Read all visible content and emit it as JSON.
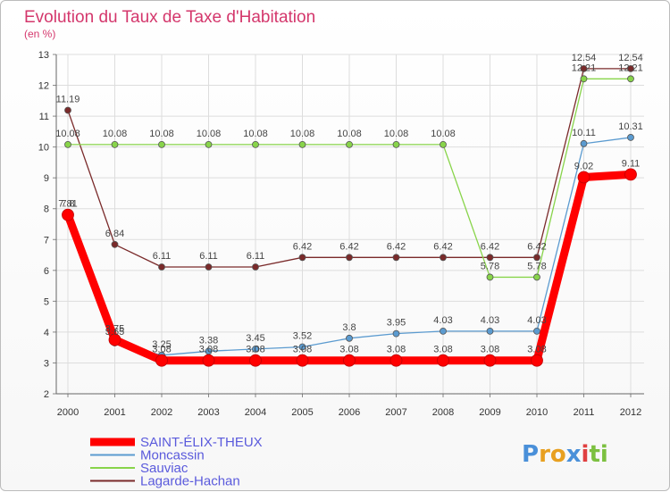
{
  "chart_data": {
    "type": "line",
    "title": "Evolution du Taux de Taxe d'Habitation",
    "subtitle": "(en %)",
    "xlabel": "",
    "ylabel": "",
    "ylim": [
      2,
      13
    ],
    "yticks": [
      "2",
      "3",
      "4",
      "5",
      "6",
      "7",
      "8",
      "9",
      "10",
      "11",
      "12",
      "13"
    ],
    "categories": [
      "2000",
      "2001",
      "2002",
      "2003",
      "2004",
      "2005",
      "2006",
      "2007",
      "2008",
      "2009",
      "2010",
      "2011",
      "2012"
    ],
    "series": [
      {
        "name": "Lagarde-Hachan",
        "color": "#7a2a2a",
        "values": [
          11.19,
          6.84,
          6.11,
          6.11,
          6.11,
          6.42,
          6.42,
          6.42,
          6.42,
          6.42,
          6.42,
          12.54,
          12.54
        ],
        "labels": [
          "11.19",
          "6.84",
          "6.11",
          "6.11",
          "6.11",
          "6.42",
          "6.42",
          "6.42",
          "6.42",
          "6.42",
          "6.42",
          "12.54",
          "12.54"
        ]
      },
      {
        "name": "Sauviac",
        "color": "#88d44a",
        "values": [
          10.08,
          10.08,
          10.08,
          10.08,
          10.08,
          10.08,
          10.08,
          10.08,
          10.08,
          5.78,
          5.78,
          12.21,
          12.21
        ],
        "labels": [
          "10.08",
          "10.08",
          "10.08",
          "10.08",
          "10.08",
          "10.08",
          "10.08",
          "10.08",
          "10.08",
          "5.78",
          "5.78",
          "12.21",
          "12.21"
        ]
      },
      {
        "name": "Moncassin",
        "color": "#5b9bd0",
        "values": [
          7.81,
          3.65,
          3.25,
          3.38,
          3.45,
          3.52,
          3.8,
          3.95,
          4.03,
          4.03,
          4.03,
          10.11,
          10.31
        ],
        "labels": [
          "7.81",
          "3.65",
          "3.25",
          "3.38",
          "3.45",
          "3.52",
          "3.8",
          "3.95",
          "4.03",
          "4.03",
          "4.03",
          "10.11",
          "10.31"
        ]
      },
      {
        "name": "SAINT-ÉLIX-THEUX",
        "color": "#ff0000",
        "values": [
          7.8,
          3.75,
          3.08,
          3.08,
          3.08,
          3.08,
          3.08,
          3.08,
          3.08,
          3.08,
          3.08,
          9.02,
          9.11
        ],
        "labels": [
          "7.8",
          "3.75",
          "3.08",
          "3.08",
          "3.08",
          "3.08",
          "3.08",
          "3.08",
          "3.08",
          "3.08",
          "3.08",
          "9.02",
          "9.11"
        ]
      }
    ],
    "legend": {
      "placement": "bottom-left",
      "order": [
        "SAINT-ÉLIX-THEUX",
        "Moncassin",
        "Sauviac",
        "Lagarde-Hachan"
      ]
    }
  },
  "brand": {
    "logo_text": "Proxiti",
    "letters": [
      "P",
      "r",
      "o",
      "x",
      "i",
      "t",
      "i"
    ],
    "letter_colors": [
      "#4a90d9",
      "#e8a020",
      "#e8a020",
      "#4a90d9",
      "#e04040",
      "#7cc040",
      "#7cc040"
    ]
  }
}
